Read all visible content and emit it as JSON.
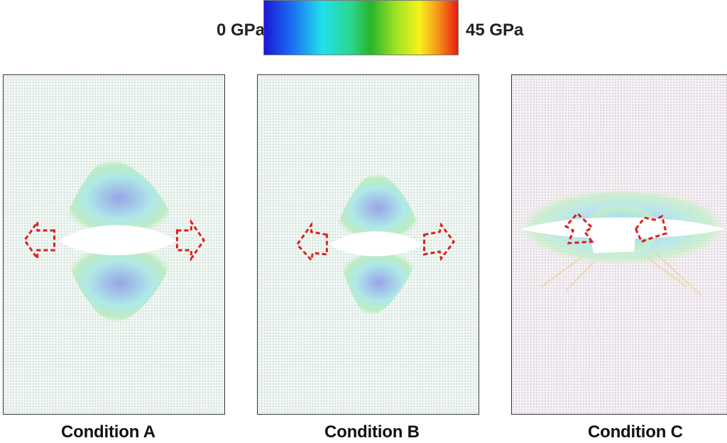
{
  "colorbar": {
    "min_label": "0 GPa",
    "max_label": "45 GPa",
    "stops": [
      "#1b17d6",
      "#1a6cf3",
      "#20e0ec",
      "#2bd68e",
      "#27b42a",
      "#9ee324",
      "#f7f21a",
      "#f5921a",
      "#ea1a12"
    ]
  },
  "panels": [
    {
      "label": "Condition A",
      "arrows": "outward-horizontal"
    },
    {
      "label": "Condition B",
      "arrows": "outward-horizontal"
    },
    {
      "label": "Condition C",
      "arrows": "tilted"
    }
  ],
  "colors": {
    "arrow": "#e01e1e",
    "mesh_light": "#cfe3dc",
    "mesh_blue": "#8f9be6",
    "mesh_green": "#9fe6a6",
    "mesh_cyan": "#a8e7e8"
  }
}
